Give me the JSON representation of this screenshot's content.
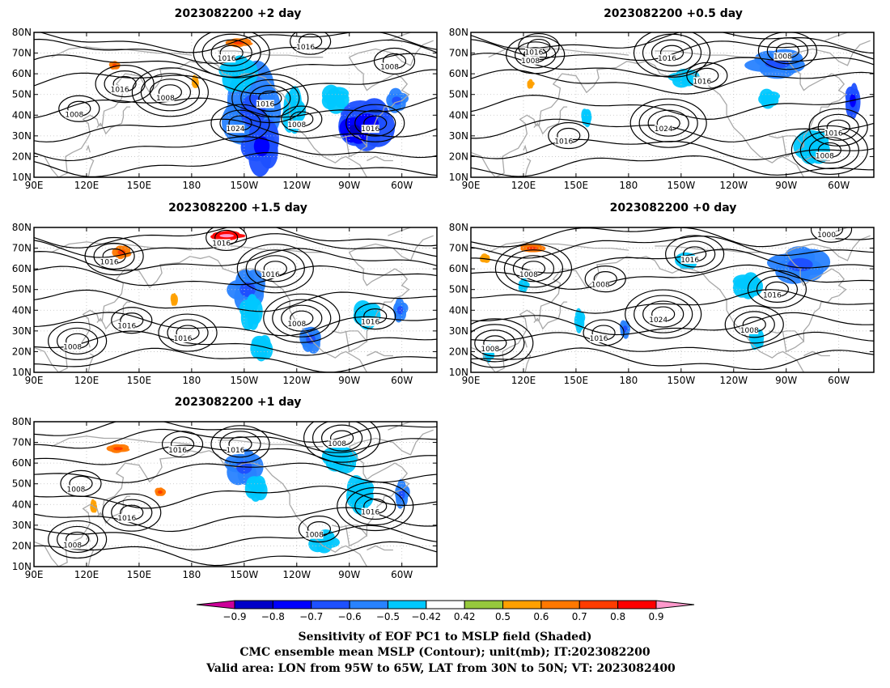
{
  "panels": [
    {
      "id": "p-plus2",
      "title": "2023082200 +2 day",
      "isobars": [
        {
          "text": "1016",
          "lon": 245,
          "lat": 72.5
        },
        {
          "text": "1016",
          "lon": 139,
          "lat": 52
        },
        {
          "text": "1008",
          "lon": 165,
          "lat": 48
        },
        {
          "text": "1008",
          "lon": 113,
          "lat": 40
        },
        {
          "text": "1024",
          "lon": 205,
          "lat": 33
        },
        {
          "text": "1016",
          "lon": 222,
          "lat": 45
        },
        {
          "text": "1008",
          "lon": 240,
          "lat": 35
        },
        {
          "text": "1016",
          "lon": 282,
          "lat": 33
        },
        {
          "text": "1016",
          "lon": 200,
          "lat": 67
        },
        {
          "text": "1008",
          "lon": 293,
          "lat": 63
        }
      ],
      "shading": [
        {
          "lon": 215,
          "lat": 42,
          "rx": 16,
          "ry": 20,
          "level": -0.6
        },
        {
          "lon": 220,
          "lat": 25,
          "rx": 10,
          "ry": 12,
          "level": -0.7
        },
        {
          "lon": 207,
          "lat": 60,
          "rx": 10,
          "ry": 8,
          "level": -0.5
        },
        {
          "lon": 280,
          "lat": 36,
          "rx": 15,
          "ry": 12,
          "level": -0.7
        },
        {
          "lon": 273,
          "lat": 33,
          "rx": 8,
          "ry": 6,
          "level": -0.8
        },
        {
          "lon": 262,
          "lat": 48,
          "rx": 8,
          "ry": 6,
          "level": -0.5
        },
        {
          "lon": 297,
          "lat": 47,
          "rx": 6,
          "ry": 5,
          "level": -0.6
        },
        {
          "lon": 238,
          "lat": 42,
          "rx": 6,
          "ry": 10,
          "level": -0.5
        },
        {
          "lon": 207,
          "lat": 75,
          "rx": 7,
          "ry": 2,
          "level": 0.6
        },
        {
          "lon": 136,
          "lat": 64,
          "rx": 3,
          "ry": 2,
          "level": 0.6
        },
        {
          "lon": 182,
          "lat": 56,
          "rx": 2,
          "ry": 3,
          "level": 0.5
        }
      ]
    },
    {
      "id": "p-plus05",
      "title": "2023082200 +0.5 day",
      "isobars": [
        {
          "text": "1016",
          "lon": 126,
          "lat": 70
        },
        {
          "text": "1008",
          "lon": 124,
          "lat": 66
        },
        {
          "text": "1016",
          "lon": 202,
          "lat": 67
        },
        {
          "text": "1016",
          "lon": 222,
          "lat": 56
        },
        {
          "text": "1008",
          "lon": 268,
          "lat": 68
        },
        {
          "text": "1024",
          "lon": 200,
          "lat": 33
        },
        {
          "text": "1016",
          "lon": 143,
          "lat": 27
        },
        {
          "text": "1016",
          "lon": 297,
          "lat": 31
        },
        {
          "text": "1008",
          "lon": 292,
          "lat": 20
        }
      ],
      "shading": [
        {
          "lon": 265,
          "lat": 65,
          "rx": 16,
          "ry": 6,
          "level": -0.6
        },
        {
          "lon": 212,
          "lat": 58,
          "rx": 8,
          "ry": 4,
          "level": -0.5
        },
        {
          "lon": 308,
          "lat": 47,
          "rx": 4,
          "ry": 8,
          "level": -0.7
        },
        {
          "lon": 285,
          "lat": 25,
          "rx": 10,
          "ry": 8,
          "level": -0.5
        },
        {
          "lon": 156,
          "lat": 39,
          "rx": 3,
          "ry": 4,
          "level": -0.5
        },
        {
          "lon": 260,
          "lat": 48,
          "rx": 6,
          "ry": 4,
          "level": -0.5
        },
        {
          "lon": 124,
          "lat": 55,
          "rx": 2,
          "ry": 2,
          "level": 0.5
        }
      ]
    },
    {
      "id": "p-plus15",
      "title": "2023082200 +1.5 day",
      "isobars": [
        {
          "text": "1016",
          "lon": 197,
          "lat": 72
        },
        {
          "text": "1016",
          "lon": 133,
          "lat": 63
        },
        {
          "text": "1016",
          "lon": 225,
          "lat": 57
        },
        {
          "text": "1016",
          "lon": 143,
          "lat": 32
        },
        {
          "text": "1016",
          "lon": 175,
          "lat": 26
        },
        {
          "text": "1008",
          "lon": 240,
          "lat": 33
        },
        {
          "text": "1016",
          "lon": 282,
          "lat": 34
        },
        {
          "text": "1008",
          "lon": 112,
          "lat": 22
        }
      ],
      "shading": [
        {
          "lon": 212,
          "lat": 50,
          "rx": 10,
          "ry": 9,
          "level": -0.6
        },
        {
          "lon": 214,
          "lat": 39,
          "rx": 6,
          "ry": 8,
          "level": -0.5
        },
        {
          "lon": 220,
          "lat": 22,
          "rx": 6,
          "ry": 6,
          "level": -0.5
        },
        {
          "lon": 248,
          "lat": 26,
          "rx": 6,
          "ry": 6,
          "level": -0.6
        },
        {
          "lon": 280,
          "lat": 38,
          "rx": 8,
          "ry": 6,
          "level": -0.5
        },
        {
          "lon": 299,
          "lat": 40,
          "rx": 4,
          "ry": 5,
          "level": -0.6
        },
        {
          "lon": 200,
          "lat": 76,
          "rx": 9,
          "ry": 2,
          "level": 0.8
        },
        {
          "lon": 140,
          "lat": 68,
          "rx": 5,
          "ry": 3,
          "level": 0.6
        },
        {
          "lon": 170,
          "lat": 45,
          "rx": 2,
          "ry": 3,
          "level": 0.5
        }
      ]
    },
    {
      "id": "p-plus0",
      "title": "2023082200 +0 day",
      "isobars": [
        {
          "text": "1000",
          "lon": 293,
          "lat": 76
        },
        {
          "text": "1016",
          "lon": 215,
          "lat": 64
        },
        {
          "text": "1008",
          "lon": 123,
          "lat": 57
        },
        {
          "text": "1008",
          "lon": 164,
          "lat": 52
        },
        {
          "text": "1016",
          "lon": 262,
          "lat": 47
        },
        {
          "text": "1024",
          "lon": 197,
          "lat": 35
        },
        {
          "text": "1016",
          "lon": 163,
          "lat": 26
        },
        {
          "text": "1008",
          "lon": 249,
          "lat": 30
        },
        {
          "text": "1008",
          "lon": 101,
          "lat": 21
        }
      ],
      "shading": [
        {
          "lon": 278,
          "lat": 62,
          "rx": 16,
          "ry": 8,
          "level": -0.6
        },
        {
          "lon": 248,
          "lat": 52,
          "rx": 8,
          "ry": 6,
          "level": -0.5
        },
        {
          "lon": 213,
          "lat": 64,
          "rx": 6,
          "ry": 4,
          "level": -0.5
        },
        {
          "lon": 178,
          "lat": 31,
          "rx": 3,
          "ry": 4,
          "level": -0.6
        },
        {
          "lon": 152,
          "lat": 35,
          "rx": 3,
          "ry": 5,
          "level": -0.5
        },
        {
          "lon": 120,
          "lat": 52,
          "rx": 3,
          "ry": 3,
          "level": -0.5
        },
        {
          "lon": 100,
          "lat": 19,
          "rx": 3,
          "ry": 4,
          "level": -0.5
        },
        {
          "lon": 253,
          "lat": 26,
          "rx": 4,
          "ry": 5,
          "level": -0.5
        },
        {
          "lon": 125,
          "lat": 70,
          "rx": 7,
          "ry": 2,
          "level": 0.6
        },
        {
          "lon": 98,
          "lat": 65,
          "rx": 3,
          "ry": 2,
          "level": 0.5
        }
      ]
    },
    {
      "id": "p-plus1",
      "title": "2023082200 +1 day",
      "isobars": [
        {
          "text": "1016",
          "lon": 172,
          "lat": 66
        },
        {
          "text": "1016",
          "lon": 205,
          "lat": 66
        },
        {
          "text": "1008",
          "lon": 263,
          "lat": 69
        },
        {
          "text": "1008",
          "lon": 114,
          "lat": 47
        },
        {
          "text": "1016",
          "lon": 143,
          "lat": 33
        },
        {
          "text": "1016",
          "lon": 282,
          "lat": 36
        },
        {
          "text": "1008",
          "lon": 250,
          "lat": 25
        },
        {
          "text": "1008",
          "lon": 112,
          "lat": 20
        }
      ],
      "shading": [
        {
          "lon": 210,
          "lat": 58,
          "rx": 10,
          "ry": 8,
          "level": -0.6
        },
        {
          "lon": 217,
          "lat": 48,
          "rx": 6,
          "ry": 6,
          "level": -0.5
        },
        {
          "lon": 265,
          "lat": 62,
          "rx": 10,
          "ry": 6,
          "level": -0.5
        },
        {
          "lon": 276,
          "lat": 45,
          "rx": 8,
          "ry": 8,
          "level": -0.5
        },
        {
          "lon": 300,
          "lat": 45,
          "rx": 4,
          "ry": 6,
          "level": -0.6
        },
        {
          "lon": 255,
          "lat": 22,
          "rx": 8,
          "ry": 5,
          "level": -0.5
        },
        {
          "lon": 138,
          "lat": 67,
          "rx": 6,
          "ry": 2,
          "level": 0.6
        },
        {
          "lon": 162,
          "lat": 46,
          "rx": 3,
          "ry": 2,
          "level": 0.6
        },
        {
          "lon": 124,
          "lat": 39,
          "rx": 2,
          "ry": 3,
          "level": 0.5
        }
      ]
    }
  ],
  "axes": {
    "lon_ticks": [
      "90E",
      "120E",
      "150E",
      "180",
      "150W",
      "120W",
      "90W",
      "60W"
    ],
    "lat_ticks": [
      "10N",
      "20N",
      "30N",
      "40N",
      "50N",
      "60N",
      "70N",
      "80N"
    ],
    "lon_range": [
      90,
      320
    ],
    "lat_range": [
      10,
      80
    ]
  },
  "colorbar": {
    "levels": [
      "-0.9",
      "-0.8",
      "-0.7",
      "-0.6",
      "-0.5",
      "-0.42",
      "0.42",
      "0.5",
      "0.6",
      "0.7",
      "0.8",
      "0.9"
    ],
    "colors": [
      "#cc0099",
      "#0000c8",
      "#0000ff",
      "#1e50ff",
      "#2882ff",
      "#00c8ff",
      "#ffffff",
      "#96c83c",
      "#ffa000",
      "#ff7800",
      "#ff3c00",
      "#ff0000",
      "#ff99cc"
    ],
    "outline": "#000000"
  },
  "captions": {
    "line1": "Sensitivity of EOF PC1 to MSLP field (Shaded)",
    "line2": "CMC ensemble mean MSLP (Contour); unit(mb); IT:2023082200",
    "line3": "Valid area: LON from 95W to 65W, LAT from 30N to 50N; VT: 2023082400"
  }
}
